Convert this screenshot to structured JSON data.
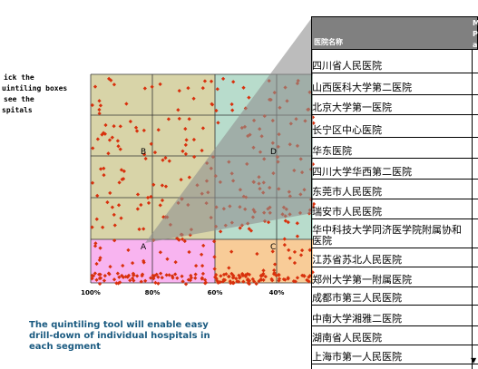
{
  "left_note": [
    "ick the",
    "uintiling boxes",
    "see the",
    "spitals"
  ],
  "segments": [
    "B",
    "D",
    "A",
    "C"
  ],
  "x_axis_labels": [
    "100%",
    "80%",
    "60%",
    "40%"
  ],
  "table": {
    "header": "医院名称",
    "header2": [
      "M",
      "P",
      "a"
    ],
    "rows": [
      "四川省人民医院",
      "山西医科大学第二医院",
      "北京大学第一医院",
      "长宁区中心医院",
      "华东医院",
      "四川大学华西第二医院",
      "东莞市人民医院",
      "瑞安市人民医院",
      "华中科技大学同济医学院附属协和医院",
      "江苏省苏北人民医院",
      "郑州大学第一附属医院",
      "成都市第三人民医院",
      "中南大学湘雅二医院",
      "湖南省人民医院",
      "上海市第一人民医院"
    ]
  },
  "caption": [
    "The quintiling tool will enable easy",
    "drill-down of individual hospitals in",
    "each segment"
  ]
}
